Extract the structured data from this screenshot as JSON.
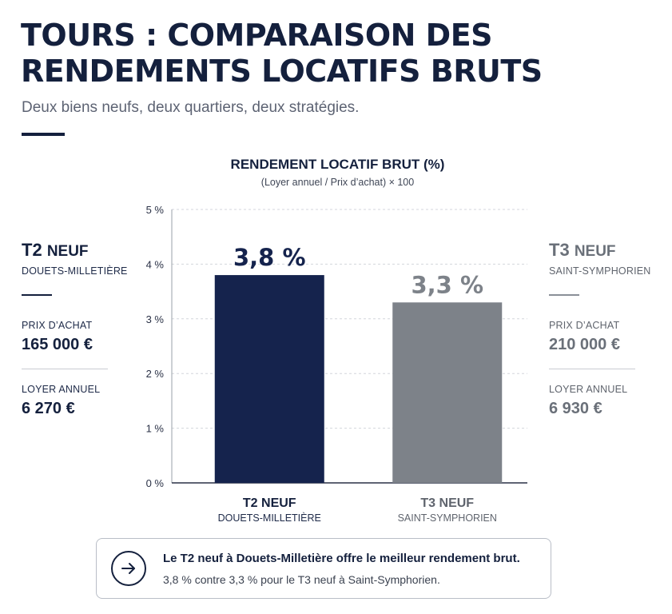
{
  "header": {
    "title_line1": "TOURS : COMPARAISON DES",
    "title_line2": "RENDEMENTS LOCATIFS BRUTS",
    "subtitle": "Deux biens neufs, deux quartiers, deux stratégies."
  },
  "chart_data": {
    "type": "bar",
    "title": "RENDEMENT LOCATIF BRUT (%)",
    "subtitle": "(Loyer annuel / Prix d’achat) × 100",
    "categories": [
      "T2 NEUF",
      "T3 NEUF"
    ],
    "category_sublabels": [
      "DOUETS-MILLETIÈRE",
      "SAINT-SYMPHORIEN"
    ],
    "values": [
      3.8,
      3.3
    ],
    "value_labels": [
      "3,8 %",
      "3,3 %"
    ],
    "colors": [
      "#15234d",
      "#7d8289"
    ],
    "ylim": [
      0,
      5
    ],
    "yticks": [
      0,
      1,
      2,
      3,
      4,
      5
    ],
    "ytick_labels": [
      "0 %",
      "1 %",
      "2 %",
      "3 %",
      "4 %",
      "5 %"
    ],
    "grid": true,
    "grid_style": "dashed",
    "legend": "none"
  },
  "properties": {
    "left": {
      "name": "T2",
      "name_suffix": "NEUF",
      "district": "DOUETS-MILLETIÈRE",
      "price_label": "PRIX D’ACHAT",
      "price_value": "165 000 €",
      "rent_label": "LOYER ANNUEL",
      "rent_value": "6 270 €"
    },
    "right": {
      "name": "T3",
      "name_suffix": "NEUF",
      "district": "SAINT-SYMPHORIEN",
      "price_label": "PRIX D’ACHAT",
      "price_value": "210 000 €",
      "rent_label": "LOYER ANNUEL",
      "rent_value": "6 930 €"
    }
  },
  "callout": {
    "icon": "arrow-right-icon",
    "main": "Le T2 neuf à Douets-Milletière offre le meilleur rendement brut.",
    "detail": "3,8 % contre 3,3 % pour le T3 neuf à Saint-Symphorien."
  },
  "colors": {
    "navy": "#14203d",
    "gray": "#7d8289"
  }
}
